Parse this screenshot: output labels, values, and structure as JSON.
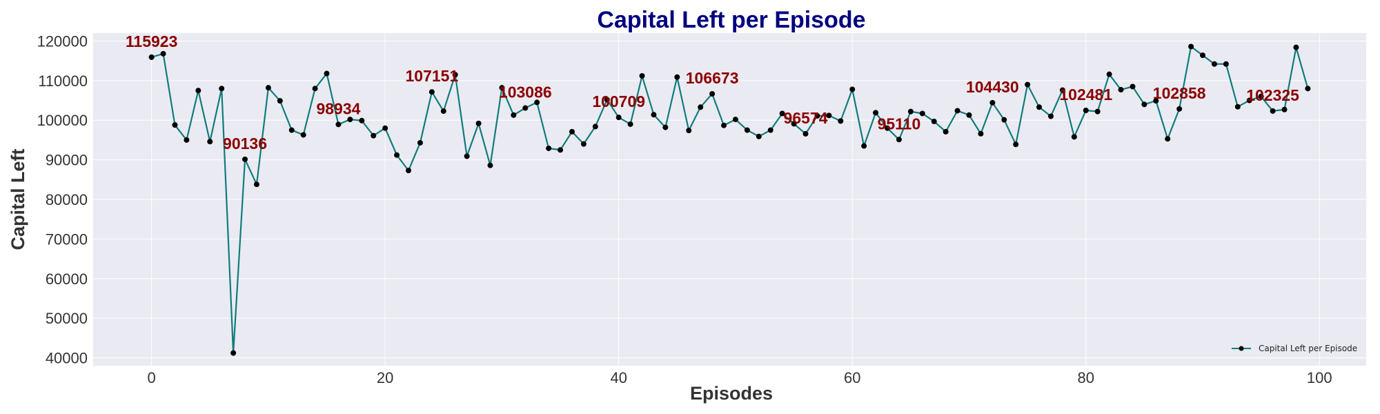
{
  "chart_data": {
    "type": "line",
    "title": "Capital Left per Episode",
    "xlabel": "Episodes",
    "ylabel": "Capital Left",
    "xlim": [
      -5,
      104
    ],
    "ylim": [
      38000,
      122000
    ],
    "xticks": [
      0,
      20,
      40,
      60,
      80,
      100
    ],
    "yticks": [
      40000,
      50000,
      60000,
      70000,
      80000,
      90000,
      100000,
      110000,
      120000
    ],
    "grid": true,
    "legend_position": "lower-right",
    "colors": {
      "line": "#0e7c7b",
      "marker": "#000000",
      "annotation": "#8b0000",
      "title": "#000080",
      "plot_background": "#eaeaf2"
    },
    "series": [
      {
        "name": "Capital Left per Episode",
        "x": [
          0,
          1,
          2,
          3,
          4,
          5,
          6,
          7,
          8,
          9,
          10,
          11,
          12,
          13,
          14,
          15,
          16,
          17,
          18,
          19,
          20,
          21,
          22,
          23,
          24,
          25,
          26,
          27,
          28,
          29,
          30,
          31,
          32,
          33,
          34,
          35,
          36,
          37,
          38,
          39,
          40,
          41,
          42,
          43,
          44,
          45,
          46,
          47,
          48,
          49,
          50,
          51,
          52,
          53,
          54,
          55,
          56,
          57,
          58,
          59,
          60,
          61,
          62,
          63,
          64,
          65,
          66,
          67,
          68,
          69,
          70,
          71,
          72,
          73,
          74,
          75,
          76,
          77,
          78,
          79,
          80,
          81,
          82,
          83,
          84,
          85,
          86,
          87,
          88,
          89,
          90,
          91,
          92,
          93,
          94,
          95,
          96,
          97,
          98,
          99
        ],
        "values": [
          115923,
          116800,
          98800,
          95000,
          107500,
          94600,
          108000,
          41200,
          90136,
          83800,
          108200,
          104900,
          97500,
          96300,
          108000,
          111800,
          98934,
          100200,
          99900,
          96100,
          98000,
          91200,
          87300,
          94300,
          107151,
          102300,
          111500,
          90900,
          99200,
          88600,
          108200,
          101300,
          103086,
          104500,
          92900,
          92500,
          97100,
          94000,
          98400,
          105200,
          100709,
          99000,
          111200,
          101400,
          98200,
          110900,
          97400,
          103300,
          106673,
          98700,
          100200,
          97500,
          95900,
          97500,
          101700,
          99100,
          96574,
          101100,
          101200,
          99800,
          107800,
          93500,
          101900,
          98000,
          95110,
          102200,
          101700,
          99700,
          97100,
          102400,
          101300,
          96600,
          104430,
          100100,
          93900,
          109000,
          103300,
          101000,
          107600,
          95800,
          102481,
          102200,
          111600,
          107700,
          108500,
          104000,
          104900,
          95300,
          102858,
          118600,
          116400,
          114200,
          114200,
          103400,
          105000,
          106000,
          102325,
          102700,
          118400,
          108000
        ]
      }
    ],
    "annotations": [
      {
        "x": 0,
        "y": 115923,
        "text": "115923"
      },
      {
        "x": 8,
        "y": 90136,
        "text": "90136"
      },
      {
        "x": 16,
        "y": 98934,
        "text": "98934"
      },
      {
        "x": 24,
        "y": 107151,
        "text": "107151"
      },
      {
        "x": 32,
        "y": 103086,
        "text": "103086"
      },
      {
        "x": 40,
        "y": 100709,
        "text": "100709"
      },
      {
        "x": 48,
        "y": 106673,
        "text": "106673"
      },
      {
        "x": 56,
        "y": 96574,
        "text": "96574"
      },
      {
        "x": 64,
        "y": 95110,
        "text": "95110"
      },
      {
        "x": 72,
        "y": 104430,
        "text": "104430"
      },
      {
        "x": 80,
        "y": 102481,
        "text": "102481"
      },
      {
        "x": 88,
        "y": 102858,
        "text": "102858"
      },
      {
        "x": 96,
        "y": 102325,
        "text": "102325"
      }
    ]
  }
}
